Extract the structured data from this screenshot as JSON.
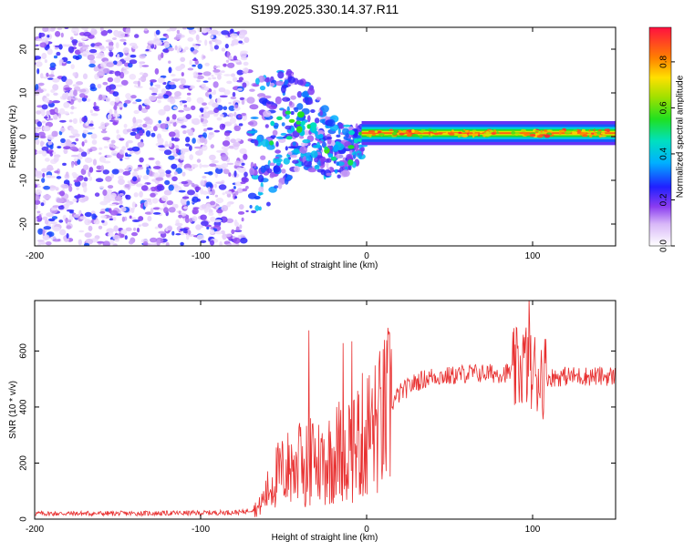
{
  "title": "S199.2025.330.14.37.R11",
  "colorbar": {
    "label": "Normalized spectral amplitude",
    "ticks": [
      "0.0",
      "0.2",
      "0.4",
      "0.6",
      "0.8"
    ],
    "tick_values": [
      0.0,
      0.2,
      0.4,
      0.6,
      0.8
    ],
    "range": [
      0,
      0.95
    ]
  },
  "chart_data": [
    {
      "type": "heatmap",
      "title": "S199.2025.330.14.37.R11",
      "xlabel": "Height of straight line (km)",
      "ylabel": "Frequency (Hz)",
      "xlim": [
        -200,
        150
      ],
      "ylim": [
        -25,
        25
      ],
      "xticks": [
        -200,
        -100,
        0,
        100
      ],
      "yticks": [
        -20,
        -10,
        0,
        10,
        20
      ],
      "xtick_labels": [
        "-200",
        "-100",
        "0",
        "100"
      ],
      "ytick_labels": [
        "-20",
        "-10",
        "0",
        "10",
        "20"
      ],
      "description_values": {
        "noise_region_x": [
          -200,
          -70
        ],
        "transition_region_x": [
          -70,
          0
        ],
        "signal_line_x": [
          0,
          150
        ],
        "signal_line_frequency": 0.8,
        "signal_line_amplitude": 0.85
      }
    },
    {
      "type": "line",
      "xlabel": "Height of straight line (km)",
      "ylabel": "SNR (10 * v/v)",
      "xlim": [
        -200,
        150
      ],
      "ylim": [
        0,
        780
      ],
      "xticks": [
        -200,
        -100,
        0,
        100
      ],
      "yticks": [
        0,
        200,
        400,
        600
      ],
      "xtick_labels": [
        "-200",
        "-100",
        "0",
        "100"
      ],
      "ytick_labels": [
        "0",
        "200",
        "400",
        "600"
      ],
      "series": [
        {
          "name": "SNR",
          "color": "#e83030",
          "x": [
            -200,
            -150,
            -100,
            -75,
            -65,
            -55,
            -45,
            -35,
            -25,
            -15,
            -5,
            0,
            5,
            10,
            15,
            20,
            25,
            30,
            40,
            50,
            60,
            70,
            80,
            90,
            95,
            100,
            105,
            110,
            120,
            130,
            140,
            150
          ],
          "values": [
            20,
            20,
            22,
            25,
            40,
            150,
            190,
            200,
            210,
            250,
            280,
            310,
            320,
            360,
            410,
            450,
            470,
            490,
            510,
            510,
            520,
            520,
            520,
            525,
            560,
            520,
            520,
            505,
            510,
            510,
            510,
            510
          ]
        }
      ]
    }
  ]
}
